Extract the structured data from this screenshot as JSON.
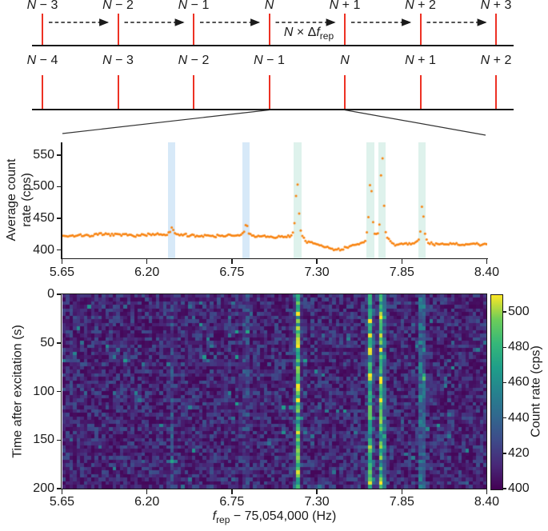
{
  "comb_diagram": {
    "top_row_labels": [
      "N − 3",
      "N − 2",
      "N − 1",
      "N",
      "N + 1",
      "N + 2",
      "N + 3"
    ],
    "bottom_row_labels": [
      "N − 4",
      "N − 3",
      "N − 2",
      "N − 1",
      "N",
      "N + 1",
      "N + 2"
    ],
    "spacing_label": {
      "var1": "N",
      "operator": " × Δ",
      "var2": "f",
      "subscript": "rep"
    },
    "tick_color": "#ed3124",
    "line_color": "#1a1a1a"
  },
  "chart_data": [
    {
      "type": "scatter",
      "title": "",
      "ylabel_line1": "Average count",
      "ylabel_line2": "rate (cps)",
      "xlim": [
        5.65,
        8.4
      ],
      "ylim": [
        387,
        570
      ],
      "xtick_values": [
        5.65,
        6.2,
        6.75,
        7.3,
        7.85,
        8.4
      ],
      "xtick_labels": [
        "5.65",
        "6.20",
        "6.75",
        "7.30",
        "7.85",
        "8.40"
      ],
      "ytick_values": [
        400,
        450,
        500,
        550
      ],
      "ytick_labels": [
        "400",
        "450",
        "500",
        "550"
      ],
      "marker_color": "#f8820e",
      "n_points": 270,
      "baseline_points": [
        [
          5.65,
          423
        ],
        [
          6.2,
          422
        ],
        [
          6.55,
          421
        ],
        [
          6.9,
          420
        ],
        [
          7.1,
          417
        ],
        [
          7.3,
          405
        ],
        [
          7.42,
          399
        ],
        [
          7.55,
          407
        ],
        [
          7.75,
          406
        ],
        [
          8.0,
          409
        ],
        [
          8.15,
          407
        ],
        [
          8.4,
          407
        ]
      ],
      "noise_cps": 2.5,
      "peaks": [
        {
          "center_hz": 6.36,
          "height": 11,
          "width": 0.01,
          "observed_peak_cps": 433
        },
        {
          "center_hz": 6.84,
          "height": 20,
          "width": 0.01,
          "observed_peak_cps": 441
        },
        {
          "center_hz": 7.17,
          "height": 85,
          "width": 0.012,
          "observed_peak_cps": 500
        },
        {
          "center_hz": 7.645,
          "height": 112,
          "width": 0.01,
          "observed_peak_cps": 527
        },
        {
          "center_hz": 7.72,
          "height": 152,
          "width": 0.01,
          "observed_peak_cps": 565
        },
        {
          "center_hz": 7.98,
          "height": 62,
          "width": 0.01,
          "observed_peak_cps": 476
        }
      ],
      "highlight_bands": [
        {
          "center_hz": 6.36,
          "width_hz": 0.045,
          "color": "#d7e9f8"
        },
        {
          "center_hz": 6.84,
          "width_hz": 0.048,
          "color": "#d7e9f8"
        },
        {
          "center_hz": 7.175,
          "width_hz": 0.048,
          "color": "#def2ec"
        },
        {
          "center_hz": 7.645,
          "width_hz": 0.05,
          "color": "#def2ec"
        },
        {
          "center_hz": 7.72,
          "width_hz": 0.046,
          "color": "#def2ec"
        },
        {
          "center_hz": 7.98,
          "width_hz": 0.048,
          "color": "#def2ec"
        }
      ]
    },
    {
      "type": "heatmap",
      "xlabel_var": "f",
      "xlabel_sub": "rep",
      "xlabel_rest": " − 75,054,000 (Hz)",
      "ylabel": "Time after excitation (s)",
      "colorbar_label": "Count rate (cps)",
      "xlim": [
        5.65,
        8.4
      ],
      "ylim_s": [
        0,
        200
      ],
      "xtick_values": [
        5.65,
        6.2,
        6.75,
        7.3,
        7.85,
        8.4
      ],
      "xtick_labels": [
        "5.65",
        "6.20",
        "6.75",
        "7.30",
        "7.85",
        "8.40"
      ],
      "ytick_values": [
        0,
        50,
        100,
        150,
        200
      ],
      "ytick_labels": [
        "0",
        "50",
        "100",
        "150",
        "200"
      ],
      "colorbar_tick_values": [
        400,
        420,
        440,
        460,
        480,
        500
      ],
      "colorbar_tick_labels": [
        "400",
        "420",
        "440",
        "460",
        "480",
        "500"
      ],
      "color_range_cps": [
        400,
        510
      ],
      "colormap": "viridis",
      "viridis_stops": [
        "#440154",
        "#482878",
        "#3e4a89",
        "#31688e",
        "#26828e",
        "#1f9e89",
        "#35b779",
        "#6dcd59",
        "#fde725"
      ],
      "grid": {
        "cols": 118,
        "rows": 54
      },
      "background_cps": {
        "typical": 410,
        "spread": 30
      },
      "bright_stripes": [
        {
          "center_hz": 6.36,
          "boost_cps": 12
        },
        {
          "center_hz": 6.84,
          "boost_cps": 17
        },
        {
          "center_hz": 7.175,
          "boost_cps": 72
        },
        {
          "center_hz": 7.645,
          "boost_cps": 76
        },
        {
          "center_hz": 7.72,
          "boost_cps": 90
        },
        {
          "center_hz": 7.98,
          "boost_cps": 48
        }
      ]
    }
  ]
}
